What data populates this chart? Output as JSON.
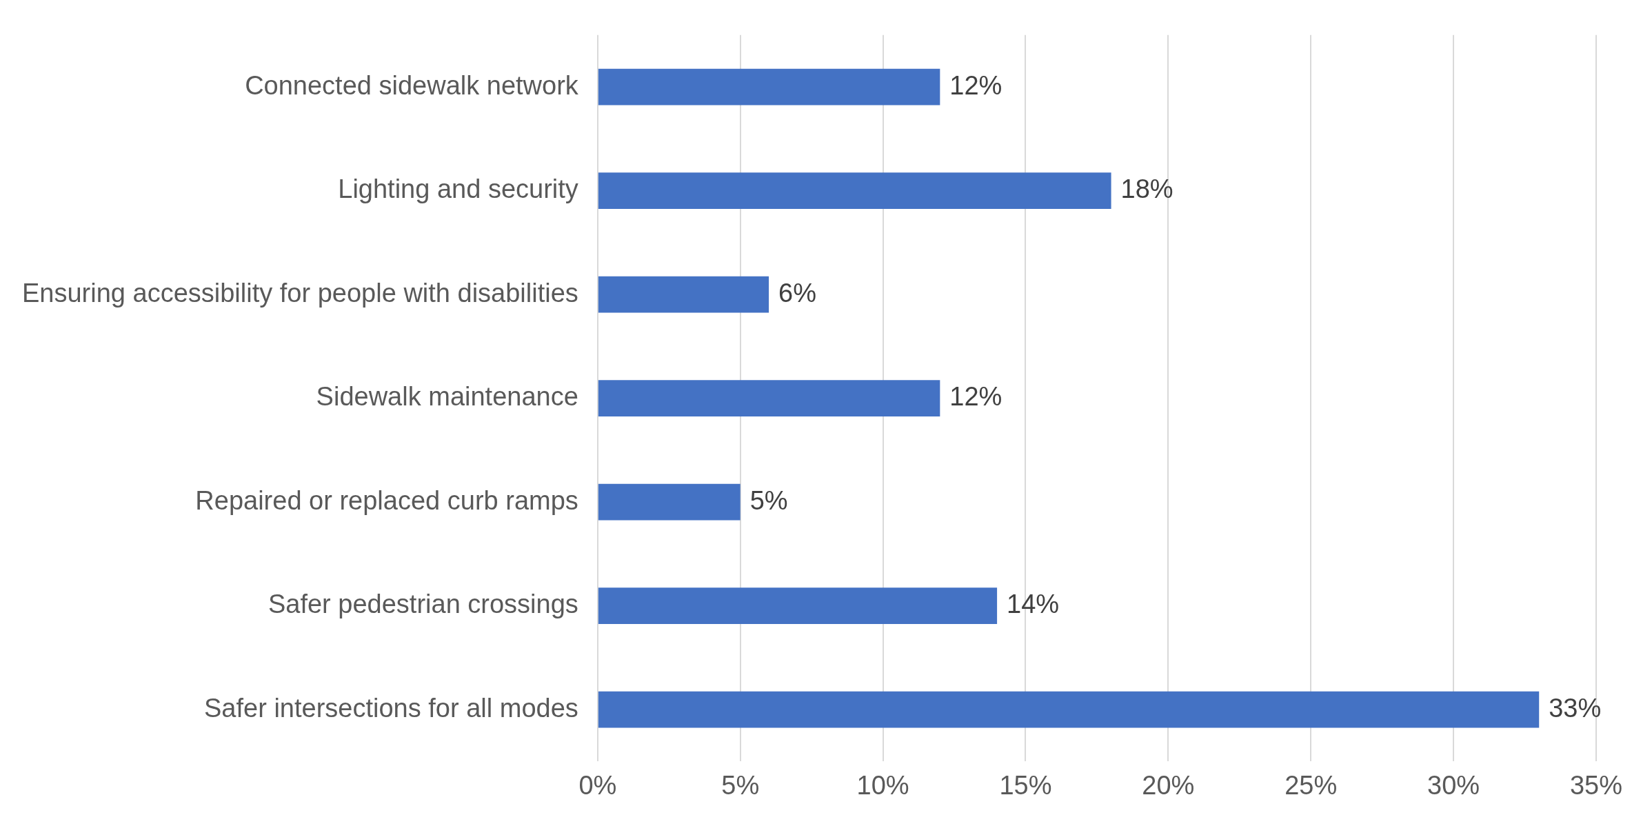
{
  "chart_data": {
    "type": "bar",
    "orientation": "horizontal",
    "categories": [
      "Connected sidewalk network",
      "Lighting and security",
      "Ensuring accessibility for people with disabilities",
      "Sidewalk maintenance",
      "Repaired or replaced curb ramps",
      "Safer pedestrian crossings",
      "Safer intersections for all modes"
    ],
    "values": [
      12,
      18,
      6,
      12,
      5,
      14,
      33
    ],
    "value_labels": [
      "12%",
      "18%",
      "6%",
      "12%",
      "5%",
      "14%",
      "33%"
    ],
    "color": "#4472c4",
    "xlim": [
      0,
      35
    ],
    "xticks": [
      {
        "value": 0,
        "label": "0%"
      },
      {
        "value": 5,
        "label": "5%"
      },
      {
        "value": 10,
        "label": "10%"
      },
      {
        "value": 15,
        "label": "15%"
      },
      {
        "value": 20,
        "label": "20%"
      },
      {
        "value": 25,
        "label": "25%"
      },
      {
        "value": 30,
        "label": "30%"
      },
      {
        "value": 35,
        "label": "35%"
      }
    ],
    "grid": "x",
    "legend": false
  }
}
